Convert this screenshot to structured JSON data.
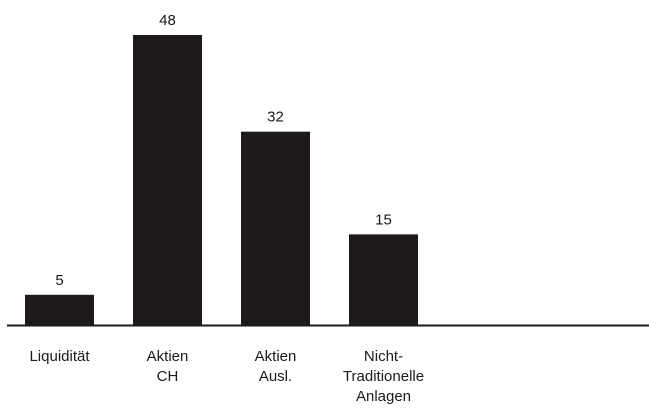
{
  "chart_data": {
    "type": "bar",
    "categories": [
      [
        "Liquidität"
      ],
      [
        "Aktien",
        "CH"
      ],
      [
        "Aktien",
        "Ausl."
      ],
      [
        "Nicht-",
        "Traditionelle",
        "Anlagen"
      ]
    ],
    "values": [
      5,
      48,
      32,
      15
    ],
    "data_labels": [
      "5",
      "48",
      "32",
      "15"
    ],
    "title": "",
    "xlabel": "",
    "ylabel": "",
    "ylim": [
      0,
      50
    ],
    "grid": false,
    "colors": {
      "bar": "#1f1a1a",
      "axis": "#1a1a1a"
    }
  }
}
